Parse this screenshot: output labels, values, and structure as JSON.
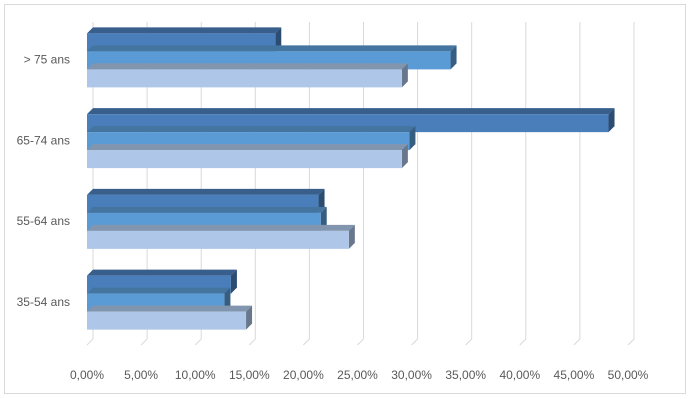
{
  "chart_data": {
    "type": "bar3d",
    "orientation": "horizontal",
    "categories": [
      "35-54 ans",
      "55-64 ans",
      "65-74 ans",
      "> 75 ans"
    ],
    "series": [
      {
        "color": "#4a7ebb",
        "values": [
          13.3,
          21.4,
          48.2,
          17.4
        ]
      },
      {
        "color": "#5b9bd5",
        "values": [
          12.7,
          21.6,
          29.8,
          33.6
        ]
      },
      {
        "color": "#aec7e8",
        "values": [
          14.7,
          24.2,
          29.1,
          29.1
        ]
      }
    ],
    "xlim": [
      0,
      50
    ],
    "xticks": [
      {
        "value": 0,
        "label": "0,00%"
      },
      {
        "value": 5,
        "label": "5,00%"
      },
      {
        "value": 10,
        "label": "10,00%"
      },
      {
        "value": 15,
        "label": "15,00%"
      },
      {
        "value": 20,
        "label": "20,00%"
      },
      {
        "value": 25,
        "label": "25,00%"
      },
      {
        "value": 30,
        "label": "30,00%"
      },
      {
        "value": 35,
        "label": "35,00%"
      },
      {
        "value": 40,
        "label": "40,00%"
      },
      {
        "value": 45,
        "label": "45,00%"
      },
      {
        "value": 50,
        "label": "50,00%"
      }
    ],
    "grid": true
  }
}
